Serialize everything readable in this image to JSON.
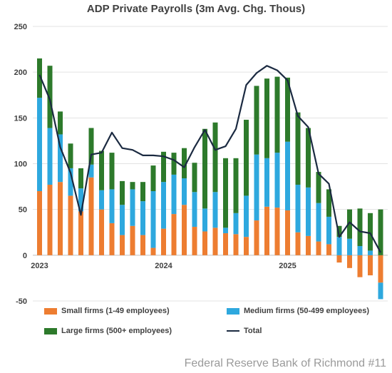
{
  "chart_data": {
    "type": "bar",
    "title": "ADP Private Payrolls (3m Avg. Chg. Thous)",
    "ylim": [
      -50,
      250
    ],
    "yticks": [
      -50,
      0,
      50,
      100,
      150,
      200,
      250
    ],
    "xtick_labels": [
      {
        "label": "2023",
        "index": 0
      },
      {
        "label": "2024",
        "index": 12
      },
      {
        "label": "2025",
        "index": 24
      }
    ],
    "colors": {
      "small": "#ed7d31",
      "medium": "#2ea8de",
      "large": "#2d7a2b",
      "total": "#1b2a41"
    },
    "series": [
      {
        "name": "Small firms (1-49 employees)",
        "key": "small",
        "values": [
          70,
          77,
          80,
          65,
          48,
          85,
          50,
          35,
          22,
          32,
          22,
          8,
          29,
          45,
          55,
          31,
          26,
          30,
          24,
          23,
          20,
          38,
          53,
          52,
          49,
          25,
          21,
          15,
          12,
          -8,
          -14,
          -24,
          -22,
          -30
        ]
      },
      {
        "name": "Medium firms (50-499 employees)",
        "key": "medium",
        "values": [
          102,
          62,
          52,
          30,
          25,
          14,
          21,
          37,
          33,
          40,
          37,
          62,
          51,
          43,
          29,
          38,
          25,
          39,
          6,
          23,
          45,
          72,
          53,
          60,
          75,
          52,
          53,
          42,
          30,
          20,
          18,
          10,
          5,
          -18
        ]
      },
      {
        "name": "Large firms (500+ employees)",
        "key": "large",
        "values": [
          43,
          68,
          25,
          27,
          22,
          40,
          43,
          40,
          26,
          8,
          21,
          28,
          33,
          24,
          33,
          32,
          87,
          76,
          76,
          60,
          83,
          75,
          87,
          83,
          70,
          79,
          65,
          34,
          30,
          12,
          32,
          41,
          41,
          50
        ]
      },
      {
        "name": "Total",
        "key": "total",
        "type": "line",
        "values": [
          197,
          170,
          118,
          90,
          44,
          110,
          112,
          134,
          117,
          115,
          109,
          109,
          108,
          104,
          96,
          118,
          137,
          115,
          119,
          138,
          186,
          199,
          207,
          202,
          191,
          152,
          140,
          89,
          78,
          20,
          36,
          26,
          24,
          3
        ]
      }
    ]
  },
  "legend": {
    "small": "Small firms (1-49 employees)",
    "medium": "Medium firms (50-499 employees)",
    "large": "Large firms (500+ employees)",
    "total": "Total"
  },
  "credit": "Federal Reserve Bank of Richmond #11"
}
